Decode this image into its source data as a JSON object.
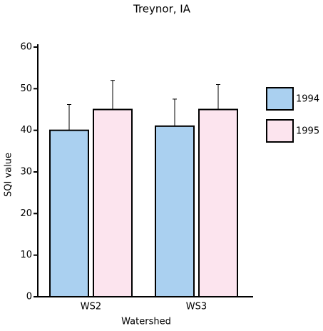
{
  "chart_data": {
    "type": "bar",
    "title": "Treynor, IA",
    "x_label": "Watershed",
    "y_label": "SQI value",
    "categories": [
      "WS2",
      "WS3"
    ],
    "series": [
      {
        "name": "1994",
        "color": "#aad0f0",
        "values": [
          40,
          41
        ],
        "errors": [
          6.2,
          6.5
        ]
      },
      {
        "name": "1995",
        "color": "#fce4ee",
        "values": [
          45,
          45
        ],
        "errors": [
          7,
          6
        ]
      }
    ],
    "ylim": [
      0,
      60
    ],
    "yticks": [
      0,
      10,
      20,
      30,
      40,
      50,
      60
    ],
    "legend": "right"
  }
}
